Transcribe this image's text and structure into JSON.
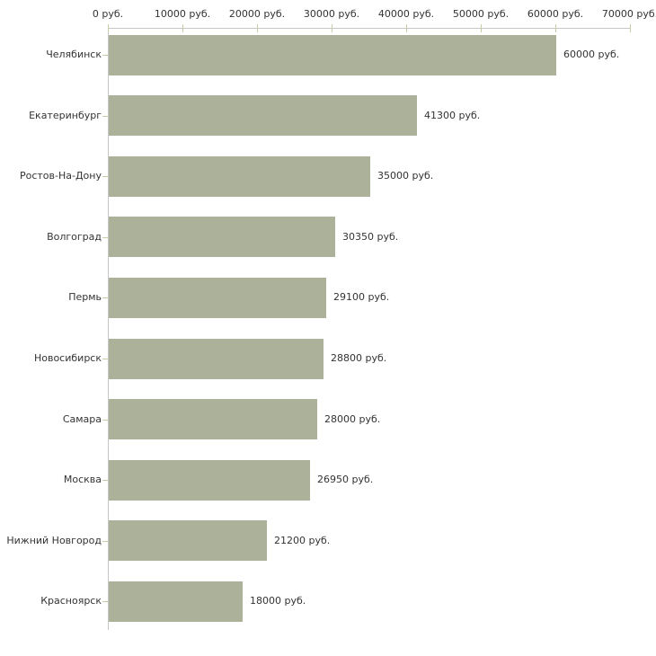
{
  "chart_data": {
    "type": "bar",
    "orientation": "horizontal",
    "title": "",
    "xlabel": "",
    "ylabel": "",
    "unit_suffix": " руб.",
    "categories": [
      "Челябинск",
      "Екатеринбург",
      "Ростов-На-Дону",
      "Волгоград",
      "Пермь",
      "Новосибирск",
      "Самара",
      "Москва",
      "Нижний Новгород",
      "Красноярск"
    ],
    "values": [
      60000,
      41300,
      35000,
      30350,
      29100,
      28800,
      28000,
      26950,
      21200,
      18000
    ],
    "value_labels": [
      "60000 руб.",
      "41300 руб.",
      "35000 руб.",
      "30350 руб.",
      "29100 руб.",
      "28800 руб.",
      "28000 руб.",
      "26950 руб.",
      "21200 руб.",
      "18000 руб."
    ],
    "axis": {
      "position": "top",
      "min": 0,
      "max": 70000,
      "tick_step": 10000,
      "tick_values": [
        0,
        10000,
        20000,
        30000,
        40000,
        50000,
        60000,
        70000
      ],
      "tick_labels": [
        "0 руб.",
        "10000 руб.",
        "20000 руб.",
        "30000 руб.",
        "40000 руб.",
        "50000 руб.",
        "60000 руб.",
        "70000 руб."
      ]
    },
    "grid": false,
    "legend": false,
    "colors": {
      "bar": "#acb29a",
      "axis_line": "#c6c6c6",
      "tick_mark": "#c9cba4",
      "text": "#333333",
      "background": "#ffffff"
    }
  }
}
